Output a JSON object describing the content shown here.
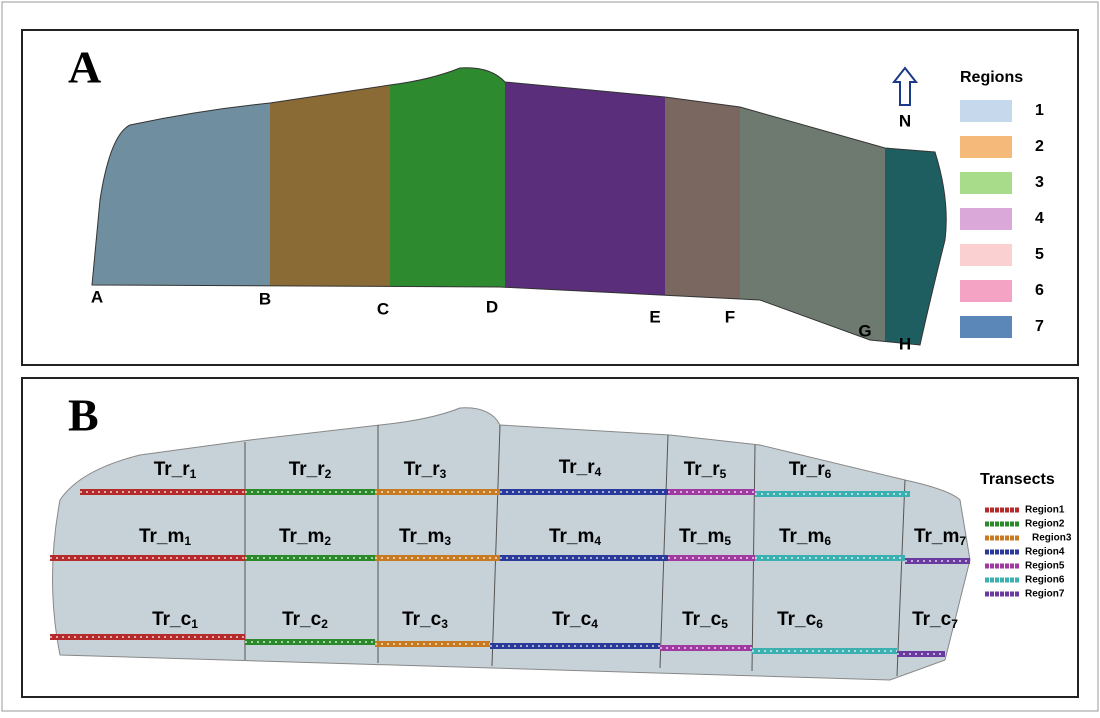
{
  "panel_a": {
    "label": "A",
    "boundaries": [
      "A",
      "B",
      "C",
      "D",
      "E",
      "F",
      "G",
      "H"
    ],
    "north": "N",
    "legend": {
      "title": "Regions",
      "items": [
        {
          "label": "1",
          "color": "#c6d9ec"
        },
        {
          "label": "2",
          "color": "#f5b97a"
        },
        {
          "label": "3",
          "color": "#a8db8a"
        },
        {
          "label": "4",
          "color": "#dba9d9"
        },
        {
          "label": "5",
          "color": "#fbd0d0"
        },
        {
          "label": "6",
          "color": "#f5a3c5"
        },
        {
          "label": "7",
          "color": "#5a86b8"
        }
      ]
    }
  },
  "panel_b": {
    "label": "B",
    "rows": [
      [
        {
          "base": "Tr_r",
          "sub": "1"
        },
        {
          "base": "Tr_r",
          "sub": "2"
        },
        {
          "base": "Tr_r",
          "sub": "3"
        },
        {
          "base": "Tr_r",
          "sub": "4"
        },
        {
          "base": "Tr_r",
          "sub": "5"
        },
        {
          "base": "Tr_r",
          "sub": "6"
        }
      ],
      [
        {
          "base": "Tr_m",
          "sub": "1"
        },
        {
          "base": "Tr_m",
          "sub": "2"
        },
        {
          "base": "Tr_m",
          "sub": "3"
        },
        {
          "base": "Tr_m",
          "sub": "4"
        },
        {
          "base": "Tr_m",
          "sub": "5"
        },
        {
          "base": "Tr_m",
          "sub": "6"
        },
        {
          "base": "Tr_m",
          "sub": "7"
        }
      ],
      [
        {
          "base": "Tr_c",
          "sub": "1"
        },
        {
          "base": "Tr_c",
          "sub": "2"
        },
        {
          "base": "Tr_c",
          "sub": "3"
        },
        {
          "base": "Tr_c",
          "sub": "4"
        },
        {
          "base": "Tr_c",
          "sub": "5"
        },
        {
          "base": "Tr_c",
          "sub": "6"
        },
        {
          "base": "Tr_c",
          "sub": "7"
        }
      ]
    ],
    "legend": {
      "title": "Transects",
      "items": [
        {
          "label": "Region1",
          "color": "#b52a2a"
        },
        {
          "label": "Region2",
          "color": "#2a8a2a"
        },
        {
          "label": "Region3",
          "color": "#c87a20"
        },
        {
          "label": "Region4",
          "color": "#2a3a9a"
        },
        {
          "label": "Region5",
          "color": "#a03aa0"
        },
        {
          "label": "Region6",
          "color": "#3ab0b0"
        },
        {
          "label": "Region7",
          "color": "#6a3aa0"
        }
      ]
    }
  }
}
